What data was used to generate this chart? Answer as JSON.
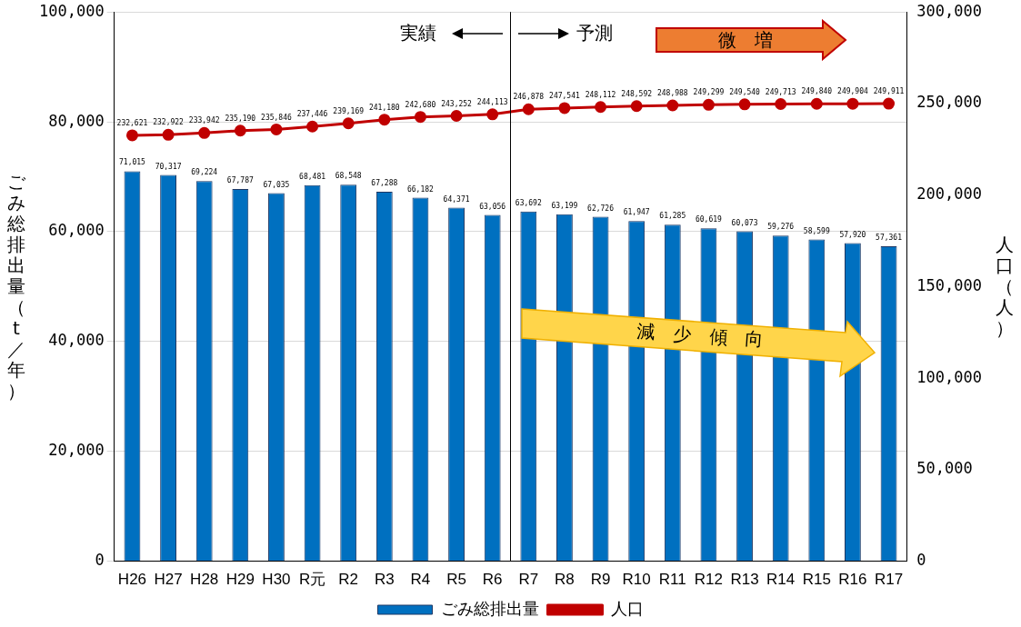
{
  "chart_data": {
    "type": "bar",
    "ylabel": "ごみ総排出量（t／年）",
    "y2label": "人口（人）",
    "categories": [
      "H26",
      "H27",
      "H28",
      "H29",
      "H30",
      "R元",
      "R2",
      "R3",
      "R4",
      "R5",
      "R6",
      "R7",
      "R8",
      "R9",
      "R10",
      "R11",
      "R12",
      "R13",
      "R14",
      "R15",
      "R16",
      "R17"
    ],
    "series": [
      {
        "name": "ごみ総排出量",
        "color": "#0070c0",
        "values": [
          71015,
          70317,
          69224,
          67787,
          67035,
          68481,
          68548,
          67288,
          66182,
          64371,
          63056,
          63692,
          63199,
          62726,
          61947,
          61285,
          60619,
          60073,
          59276,
          58599,
          57920,
          57361
        ],
        "value_labels": [
          "71,015",
          "70,317",
          "69,224",
          "67,787",
          "67,035",
          "68,481",
          "68,548",
          "67,288",
          "66,182",
          "64,371",
          "63,056",
          "63,692",
          "63,199",
          "62,726",
          "61,947",
          "61,285",
          "60,619",
          "60,073",
          "59,276",
          "58,599",
          "57,920",
          "57,361"
        ]
      },
      {
        "name": "人口",
        "type": "line",
        "axis": "y2",
        "color": "#c00000",
        "marker": "circle",
        "values": [
          232621,
          232922,
          233942,
          235190,
          235846,
          237446,
          239169,
          241180,
          242680,
          243252,
          244113,
          246878,
          247541,
          248112,
          248592,
          248988,
          249299,
          249540,
          249713,
          249840,
          249904,
          249911
        ],
        "value_labels": [
          "232,621",
          "232,922",
          "233,942",
          "235,190",
          "235,846",
          "237,446",
          "239,169",
          "241,180",
          "242,680",
          "243,252",
          "244,113",
          "246,878",
          "247,541",
          "248,112",
          "248,592",
          "248,988",
          "249,299",
          "249,540",
          "249,713",
          "249,840",
          "249,904",
          "249,911"
        ]
      }
    ],
    "ylim": [
      0,
      100000
    ],
    "yticks": [
      0,
      {
        "value": 20000,
        "label": "20,000"
      },
      {
        "value": 40000,
        "label": "40,000"
      },
      {
        "value": 60000,
        "label": "60,000"
      },
      {
        "value": 80000,
        "label": "80,000"
      },
      {
        "value": 100000,
        "label": "100,000"
      }
    ],
    "y2lim": [
      0,
      300000
    ],
    "y2ticks": [
      0,
      {
        "value": 50000,
        "label": "50,000"
      },
      {
        "value": 100000,
        "label": "100,000"
      },
      {
        "value": 150000,
        "label": "150,000"
      },
      {
        "value": 200000,
        "label": "200,000"
      },
      {
        "value": 250000,
        "label": "250,000"
      },
      {
        "value": 300000,
        "label": "300,000"
      }
    ],
    "grid": "y",
    "legend": "bottom",
    "ref_lines": [
      {
        "axis": "x",
        "value": "R6",
        "color": "#000000"
      }
    ],
    "annotations": [
      "実績",
      "予測",
      "微　増",
      "減　少　傾　向"
    ]
  }
}
